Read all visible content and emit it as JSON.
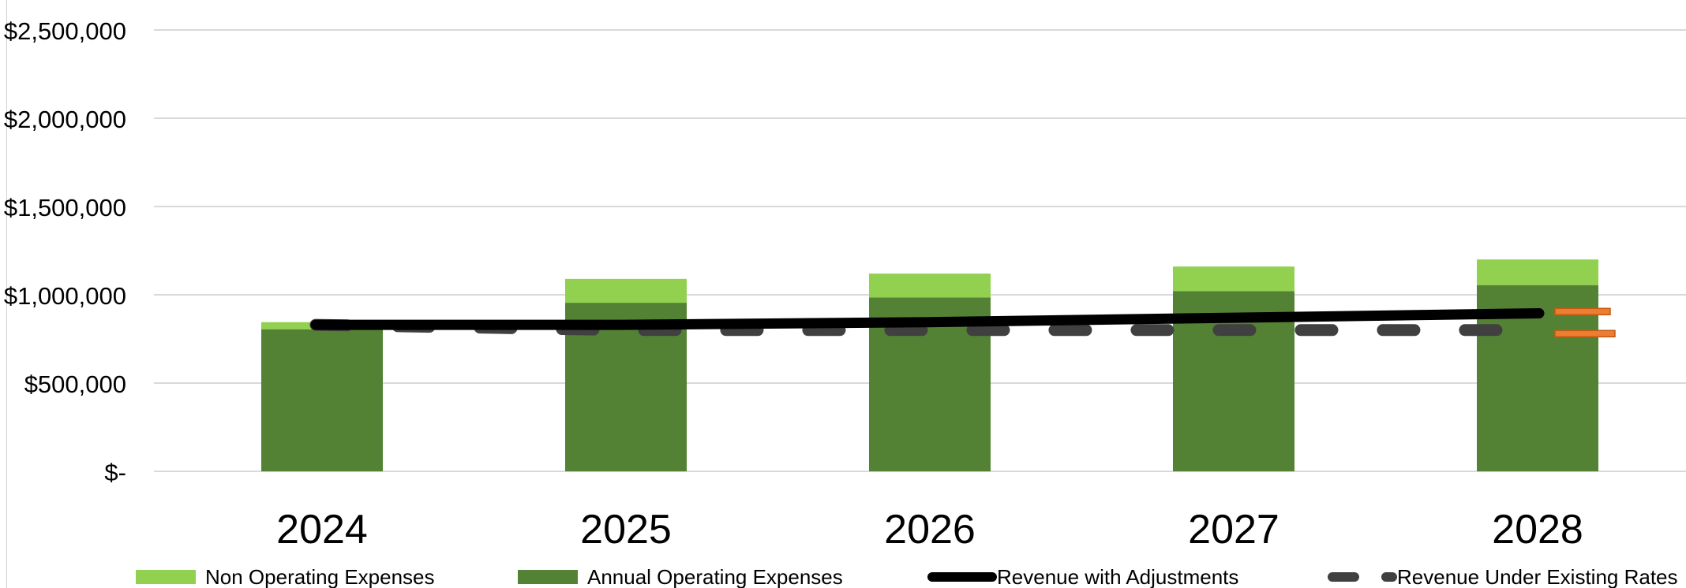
{
  "colors": {
    "non_operating": "#92d050",
    "operating": "#548235",
    "revenue_adjusted": "#000000",
    "revenue_existing": "#404040",
    "gridline": "#d9d9d9",
    "axis_text": "#000000",
    "marker_accent": "#ed7d31"
  },
  "chart_data": {
    "type": "bar",
    "stacked": true,
    "title": "",
    "xlabel": "",
    "ylabel": "",
    "categories": [
      "2024",
      "2025",
      "2026",
      "2027",
      "2028"
    ],
    "ylim": [
      0,
      2500000
    ],
    "yticks": [
      0,
      500000,
      1000000,
      1500000,
      2000000,
      2500000
    ],
    "ytick_labels": [
      "$-",
      "$500,000",
      "$1,000,000",
      "$1,500,000",
      "$2,000,000",
      "$2,500,000"
    ],
    "grid": true,
    "legend_position": "bottom",
    "series": [
      {
        "name": "Non Operating Expenses",
        "kind": "bar",
        "color": "#92d050",
        "values": [
          40000,
          135000,
          135000,
          140000,
          145000
        ]
      },
      {
        "name": "Annual Operating Expenses",
        "kind": "bar",
        "color": "#548235",
        "values": [
          805000,
          955000,
          985000,
          1020000,
          1055000
        ]
      },
      {
        "name": "Revenue with Adjustments",
        "kind": "line",
        "style": "solid",
        "color": "#000000",
        "values": [
          830000,
          830000,
          845000,
          870000,
          895000
        ]
      },
      {
        "name": "Revenue Under Existing Rates",
        "kind": "line",
        "style": "dashed",
        "color": "#404040",
        "values": [
          830000,
          800000,
          800000,
          800000,
          800000
        ]
      }
    ]
  }
}
